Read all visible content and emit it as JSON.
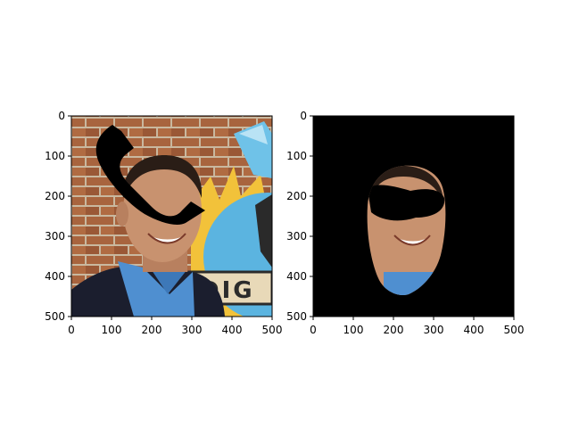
{
  "figure": {
    "background": "#ffffff",
    "panels": [
      {
        "id": "left",
        "content": "photo-with-phone-occlusion",
        "x_ticks": [
          "0",
          "100",
          "200",
          "300",
          "400",
          "500"
        ],
        "y_ticks": [
          "0",
          "100",
          "200",
          "300",
          "400",
          "500"
        ]
      },
      {
        "id": "right",
        "content": "face-mask-on-black",
        "x_ticks": [
          "0",
          "100",
          "200",
          "300",
          "400",
          "500"
        ],
        "y_ticks": [
          "0",
          "100",
          "200",
          "300",
          "400",
          "500"
        ]
      }
    ]
  },
  "photo": {
    "sign_text": "DIG",
    "colors": {
      "brick": "#a8643e",
      "mortar": "#c9b89f",
      "sky_blue": "#5bb4e0",
      "sun_yellow": "#f2c23a",
      "skin": "#c8926f",
      "hair": "#2a1d16",
      "shirt": "#4f8fd0",
      "jacket": "#1b1e2e",
      "occluder": "#000000"
    }
  }
}
